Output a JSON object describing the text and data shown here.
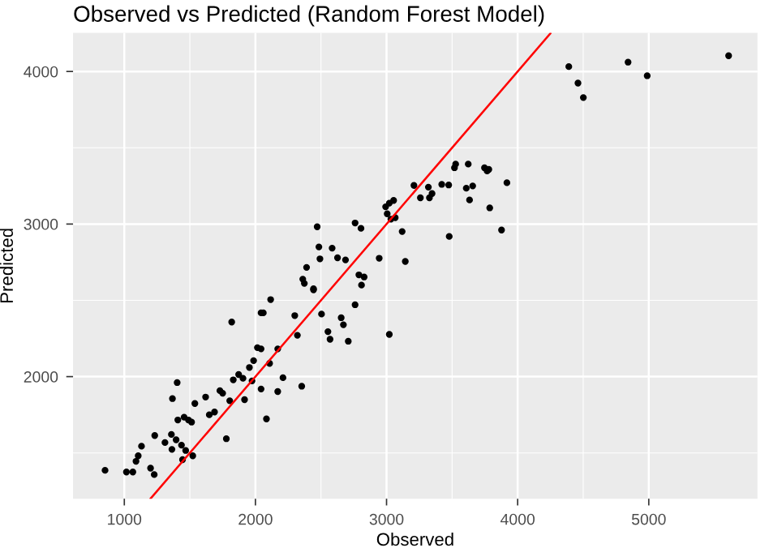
{
  "chart_data": {
    "type": "scatter",
    "title": "Observed vs Predicted (Random Forest Model)",
    "xlabel": "Observed",
    "ylabel": "Predicted",
    "xlim": [
      609,
      5829
    ],
    "ylim": [
      1200,
      4253
    ],
    "xticks": [
      1000,
      2000,
      3000,
      4000,
      5000
    ],
    "yticks": [
      2000,
      3000,
      4000
    ],
    "grid": true,
    "series": [
      {
        "marker": "circle",
        "color": "#000000",
        "x": [
          853,
          1016,
          1065,
          1089,
          1106,
          1131,
          1200,
          1228,
          1232,
          1310,
          1359,
          1363,
          1395,
          1408,
          1436,
          1456,
          1468,
          1444,
          1489,
          1513,
          1522,
          1367,
          1403,
          1538,
          1620,
          1648,
          1688,
          1729,
          1750,
          1778,
          1804,
          1819,
          1831,
          1872,
          1905,
          1917,
          1954,
          1986,
          1974,
          2015,
          2043,
          2043,
          2043,
          2060,
          2084,
          2108,
          2116,
          2170,
          2170,
          2210,
          2300,
          2320,
          2353,
          2443,
          2504,
          2553,
          2569,
          2654,
          2671,
          2708,
          2760,
          2471,
          2484,
          2492,
          2390,
          2361,
          2373,
          2443,
          2585,
          2626,
          2687,
          2760,
          2805,
          2789,
          2829,
          2809,
          2944,
          3021,
          2993,
          3021,
          3054,
          3005,
          3033,
          3066,
          3119,
          3143,
          3209,
          3258,
          3319,
          3327,
          3347,
          3421,
          3474,
          3478,
          3518,
          3527,
          3623,
          3608,
          3657,
          3633,
          3747,
          3767,
          3780,
          3787,
          3877,
          3918,
          4390,
          4460,
          4501,
          4842,
          4988,
          5609
        ],
        "values": [
          1386,
          1375,
          1375,
          1445,
          1481,
          1544,
          1400,
          1358,
          1614,
          1568,
          1621,
          1523,
          1586,
          1716,
          1551,
          1734,
          1516,
          1456,
          1716,
          1702,
          1481,
          1856,
          1961,
          1824,
          1866,
          1750,
          1768,
          1908,
          1891,
          1593,
          1842,
          2358,
          1979,
          2014,
          1989,
          1849,
          2060,
          2105,
          1972,
          2190,
          2182,
          1919,
          2418,
          2418,
          1723,
          2087,
          2505,
          2182,
          1902,
          1993,
          2400,
          2271,
          1937,
          2569,
          2410,
          2295,
          2245,
          2386,
          2340,
          2232,
          2471,
          2982,
          2850,
          2772,
          2716,
          2639,
          2611,
          2576,
          2842,
          2779,
          2765,
          3007,
          2972,
          2667,
          2653,
          2600,
          2776,
          2277,
          3113,
          3137,
          3155,
          3067,
          3032,
          3042,
          2951,
          2755,
          3253,
          3172,
          3242,
          3172,
          3200,
          3260,
          3256,
          2919,
          3369,
          3393,
          3393,
          3235,
          3250,
          3158,
          3369,
          3348,
          3358,
          3106,
          2961,
          3271,
          4032,
          3924,
          3829,
          4061,
          3972,
          4103
        ]
      },
      {
        "type": "line",
        "marker": "none",
        "color": "#ff0000",
        "x": [
          1200,
          4250
        ],
        "values": [
          1200,
          4250
        ]
      }
    ]
  }
}
